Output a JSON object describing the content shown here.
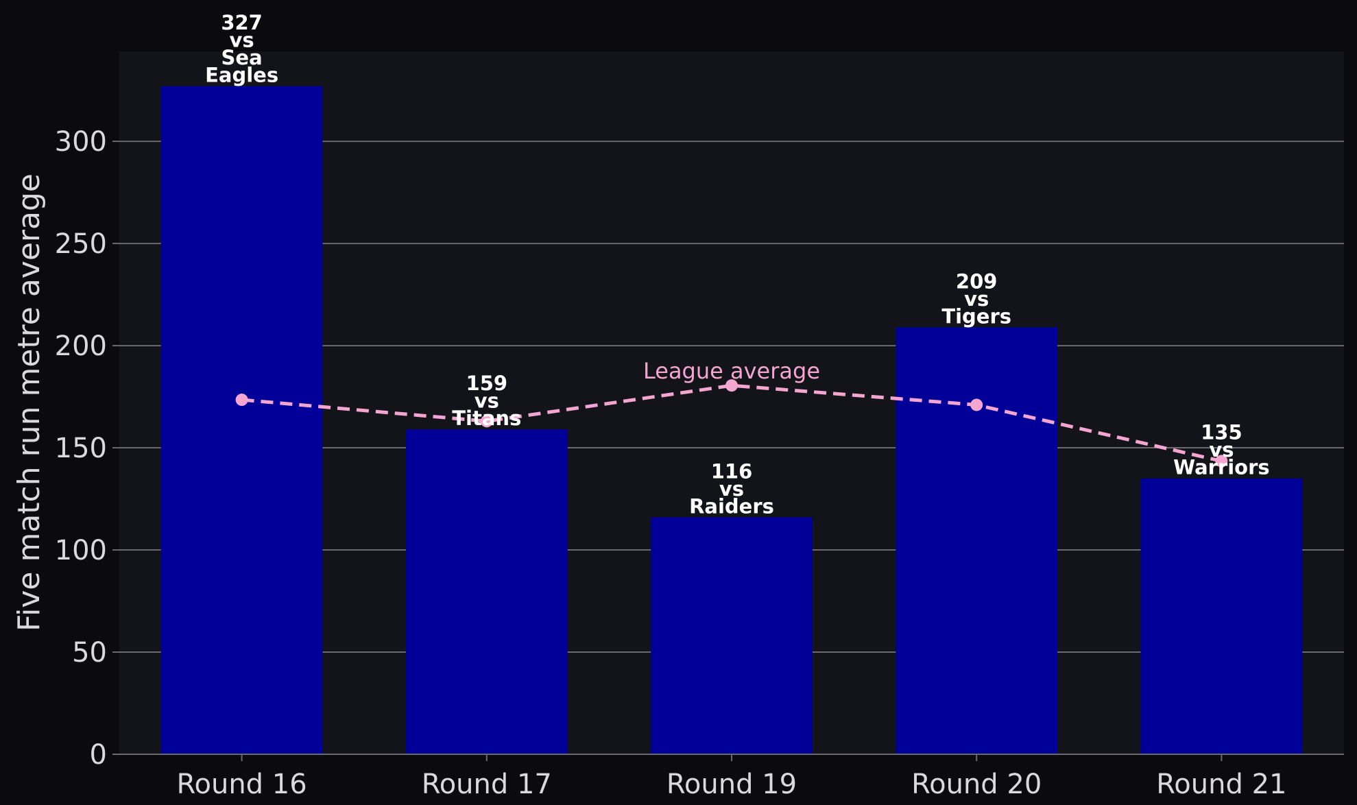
{
  "colors": {
    "page_background": "#0b0b0f",
    "plot_background": "#13131a",
    "bar": "#000099",
    "grid": "#6a6a70",
    "text": "#d9d9de",
    "bar_label": "#ffffff",
    "league_line": "#f4a6d0"
  },
  "chart_data": {
    "type": "bar",
    "title": "",
    "xlabel": "",
    "ylabel": "Five match run metre average",
    "ylim": [
      0,
      344
    ],
    "yticks": [
      0,
      50,
      100,
      150,
      200,
      250,
      300
    ],
    "grid": "horizontal",
    "categories": [
      "Round 16",
      "Round 17",
      "Round 19",
      "Round 20",
      "Round 21"
    ],
    "values": [
      327,
      159,
      116,
      209,
      135
    ],
    "bar_labels": [
      [
        "327",
        "vs",
        "Sea",
        "Eagles"
      ],
      [
        "159",
        "vs",
        "Titans"
      ],
      [
        "116",
        "vs",
        "Raiders"
      ],
      [
        "209",
        "vs",
        "Tigers"
      ],
      [
        "135",
        "vs",
        "Warriors"
      ]
    ],
    "overlay_line": {
      "label": "League average",
      "style": "dashed",
      "values": [
        173.5,
        163,
        180.5,
        171,
        143.5
      ]
    }
  }
}
